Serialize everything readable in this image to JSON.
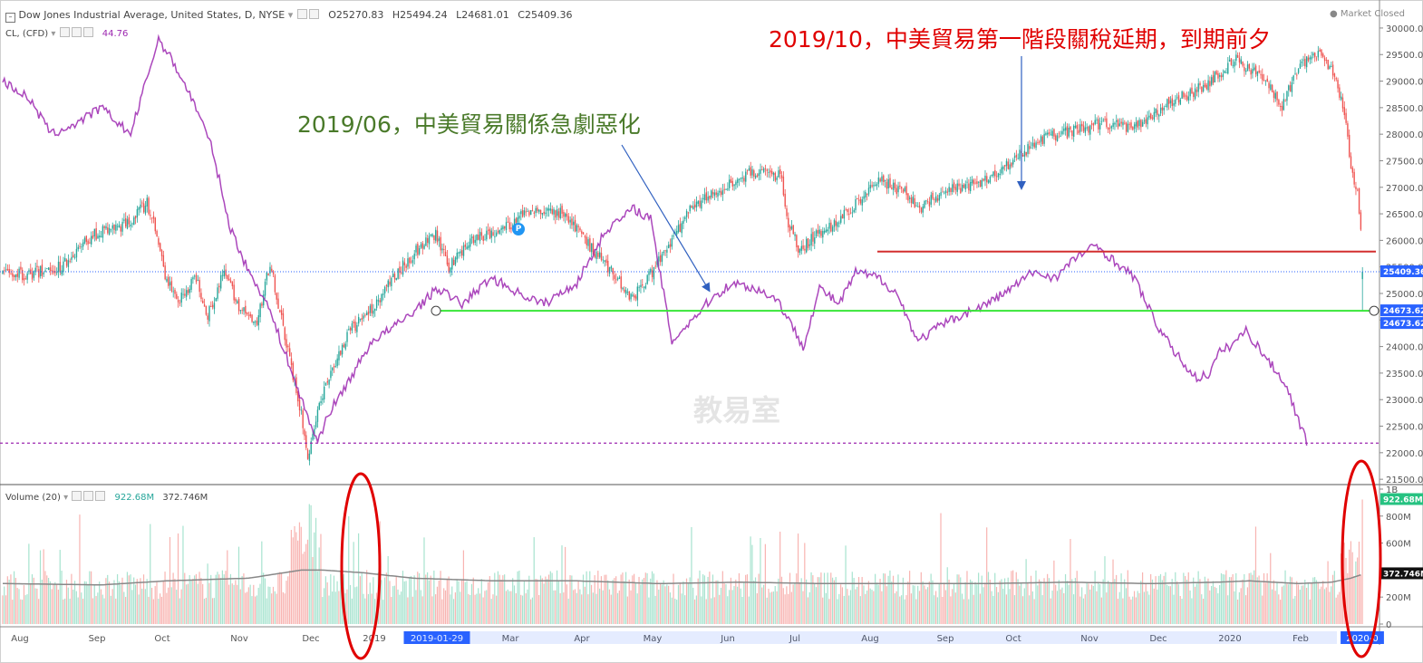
{
  "header": {
    "symbol_title": "Dow Jones Industrial Average, United States, D, NYSE",
    "open": "O25270.83",
    "high": "H25494.24",
    "low": "L24681.01",
    "close": "C25409.36",
    "market_status": "Market Closed",
    "overlay_label": "CL, (CFD)",
    "overlay_value": "44.76",
    "volume_label": "Volume (20)",
    "volume_value": "922.68M",
    "volume_ma_value": "372.746M"
  },
  "annotations": {
    "green_text": "2019/06，中美貿易關係急劇惡化",
    "red_text": "2019/10，中美貿易第一階段關稅延期，到期前夕",
    "watermark": "教易室",
    "p_flag": "P"
  },
  "colors": {
    "up": "#26a69a",
    "down": "#ef5350",
    "overlay": "#9c27b0",
    "support_line": "#39e639",
    "resistance_line": "#d32f2f",
    "annotation_green": "#4a7a2a",
    "annotation_red": "#e00000",
    "arrow": "#3060c0",
    "ellipse": "#e00000"
  },
  "chart_data": {
    "type": "candlestick",
    "title": "Dow Jones Industrial Average, United States, D, NYSE",
    "price_axis": {
      "ticks": [
        30000,
        29500,
        29000,
        28500,
        28000,
        27500,
        27000,
        26500,
        26000,
        25500,
        25000,
        24500,
        24000,
        23500,
        23000,
        22500,
        22000,
        21500
      ],
      "tick_labels": [
        "30000.00",
        "29500.00",
        "29000.00",
        "28500.00",
        "28000.00",
        "27500.00",
        "27000.00",
        "26500.00",
        "26000.00",
        "25500.00",
        "25000.00",
        "24500.00",
        "24000.00",
        "23500.00",
        "23000.00",
        "22500.00",
        "22000.00",
        "21500.00"
      ],
      "range": [
        21400,
        30050
      ]
    },
    "volume_axis": {
      "ticks": [
        1000,
        800,
        600,
        400,
        200,
        0
      ],
      "tick_labels": [
        "1B",
        "800M",
        "600M",
        "400M",
        "200M",
        "0"
      ],
      "range": [
        0,
        1020
      ]
    },
    "time_axis": {
      "labels": [
        "Aug",
        "Sep",
        "Oct",
        "Nov",
        "Dec",
        "2019",
        "2019-01-29",
        "Mar",
        "Apr",
        "May",
        "Jun",
        "Jul",
        "Aug",
        "Sep",
        "Oct",
        "Nov",
        "Dec",
        "2020",
        "Feb",
        "2020-0"
      ],
      "highlighted": [
        "2019-01-29",
        "2020-0"
      ]
    },
    "price_keypoints": [
      [
        0,
        25400
      ],
      [
        15,
        25350
      ],
      [
        35,
        25500
      ],
      [
        55,
        26100
      ],
      [
        75,
        26300
      ],
      [
        88,
        26700
      ],
      [
        95,
        26000
      ],
      [
        100,
        25200
      ],
      [
        108,
        24900
      ],
      [
        118,
        25300
      ],
      [
        125,
        24600
      ],
      [
        135,
        25400
      ],
      [
        145,
        24700
      ],
      [
        155,
        24400
      ],
      [
        163,
        25600
      ],
      [
        172,
        24200
      ],
      [
        182,
        22700
      ],
      [
        186,
        21900
      ],
      [
        192,
        22800
      ],
      [
        200,
        23500
      ],
      [
        212,
        24300
      ],
      [
        225,
        24700
      ],
      [
        238,
        25300
      ],
      [
        252,
        25800
      ],
      [
        264,
        26100
      ],
      [
        272,
        25500
      ],
      [
        285,
        26000
      ],
      [
        305,
        26200
      ],
      [
        322,
        26600
      ],
      [
        342,
        26500
      ],
      [
        355,
        26000
      ],
      [
        372,
        25400
      ],
      [
        384,
        24900
      ],
      [
        398,
        25500
      ],
      [
        420,
        26600
      ],
      [
        440,
        27000
      ],
      [
        458,
        27300
      ],
      [
        475,
        27200
      ],
      [
        478,
        26400
      ],
      [
        486,
        25800
      ],
      [
        495,
        26100
      ],
      [
        508,
        26300
      ],
      [
        520,
        26700
      ],
      [
        533,
        27150
      ],
      [
        550,
        26900
      ],
      [
        560,
        26600
      ],
      [
        572,
        26900
      ],
      [
        592,
        27050
      ],
      [
        612,
        27400
      ],
      [
        632,
        27900
      ],
      [
        652,
        28050
      ],
      [
        670,
        28200
      ],
      [
        690,
        28100
      ],
      [
        712,
        28600
      ],
      [
        732,
        28900
      ],
      [
        752,
        29400
      ],
      [
        770,
        29000
      ],
      [
        780,
        28550
      ],
      [
        792,
        29350
      ],
      [
        802,
        29500
      ],
      [
        812,
        29150
      ],
      [
        818,
        28400
      ],
      [
        822,
        27400
      ],
      [
        826,
        26900
      ],
      [
        830,
        25400
      ]
    ],
    "last_candle": {
      "open": 25270.83,
      "high": 25494.24,
      "low": 24681.01,
      "close": 25409.36
    },
    "overlay_series": {
      "name": "CL, (CFD)",
      "last_value": 44.76,
      "keypoints": [
        [
          0,
          29000
        ],
        [
          15,
          28700
        ],
        [
          30,
          28000
        ],
        [
          45,
          28200
        ],
        [
          60,
          28500
        ],
        [
          78,
          28000
        ],
        [
          95,
          29800
        ],
        [
          105,
          29300
        ],
        [
          118,
          28500
        ],
        [
          128,
          27700
        ],
        [
          138,
          26300
        ],
        [
          150,
          25400
        ],
        [
          160,
          24900
        ],
        [
          172,
          23900
        ],
        [
          182,
          23000
        ],
        [
          192,
          22200
        ],
        [
          198,
          22700
        ],
        [
          210,
          23300
        ],
        [
          225,
          24100
        ],
        [
          240,
          24400
        ],
        [
          252,
          24700
        ],
        [
          265,
          25100
        ],
        [
          280,
          24800
        ],
        [
          298,
          25300
        ],
        [
          315,
          25000
        ],
        [
          330,
          24800
        ],
        [
          350,
          25200
        ],
        [
          368,
          26200
        ],
        [
          385,
          26600
        ],
        [
          395,
          26400
        ],
        [
          408,
          24100
        ],
        [
          420,
          24500
        ],
        [
          432,
          24900
        ],
        [
          445,
          25200
        ],
        [
          458,
          25100
        ],
        [
          472,
          24900
        ],
        [
          488,
          24000
        ],
        [
          498,
          25100
        ],
        [
          510,
          24800
        ],
        [
          520,
          25400
        ],
        [
          534,
          25300
        ],
        [
          545,
          25000
        ],
        [
          558,
          24100
        ],
        [
          572,
          24400
        ],
        [
          585,
          24600
        ],
        [
          600,
          24800
        ],
        [
          615,
          25100
        ],
        [
          628,
          25400
        ],
        [
          642,
          25300
        ],
        [
          655,
          25700
        ],
        [
          667,
          25900
        ],
        [
          678,
          25600
        ],
        [
          690,
          25300
        ],
        [
          702,
          24500
        ],
        [
          712,
          24000
        ],
        [
          722,
          23600
        ],
        [
          728,
          23400
        ],
        [
          736,
          23500
        ],
        [
          742,
          23900
        ],
        [
          748,
          24000
        ],
        [
          758,
          24300
        ],
        [
          770,
          23800
        ],
        [
          782,
          23300
        ],
        [
          795,
          22200
        ]
      ]
    },
    "overlay_axis_range": [
      17,
      75
    ],
    "volume_ma_keypoints": [
      [
        0,
        300
      ],
      [
        60,
        290
      ],
      [
        100,
        320
      ],
      [
        150,
        340
      ],
      [
        182,
        400
      ],
      [
        195,
        400
      ],
      [
        220,
        380
      ],
      [
        250,
        340
      ],
      [
        300,
        320
      ],
      [
        350,
        320
      ],
      [
        400,
        300
      ],
      [
        450,
        310
      ],
      [
        500,
        300
      ],
      [
        550,
        300
      ],
      [
        600,
        300
      ],
      [
        650,
        310
      ],
      [
        700,
        300
      ],
      [
        740,
        310
      ],
      [
        760,
        320
      ],
      [
        790,
        300
      ],
      [
        810,
        310
      ],
      [
        822,
        340
      ],
      [
        830,
        372.746
      ]
    ],
    "horizontal_lines": [
      {
        "label": "24673.62",
        "price": 24673.62,
        "style": "green solid"
      },
      {
        "label": "25409.36",
        "price": 25409.36,
        "style": "blue dotted"
      },
      {
        "price": 25790,
        "style": "red solid"
      },
      {
        "price": 22180,
        "style": "purple dashed"
      }
    ],
    "price_tags": [
      "25409.36",
      "24673.62",
      "24673.62"
    ],
    "volume_tags": [
      "922.68M",
      "372.746M"
    ]
  }
}
